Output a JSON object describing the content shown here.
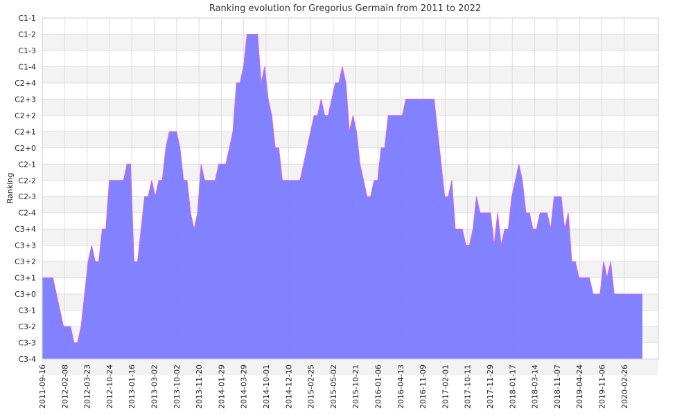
{
  "chart_data": {
    "type": "area",
    "title": "Ranking evolution for Gregorius Germain from 2011 to 2022",
    "ylabel": "Ranking",
    "xlabel": "",
    "grid": true,
    "y_categories": [
      "C1-1",
      "C1-2",
      "C1-3",
      "C1-4",
      "C2+4",
      "C2+3",
      "C2+2",
      "C2+1",
      "C2+0",
      "C2-1",
      "C2-2",
      "C2-3",
      "C2-4",
      "C3+4",
      "C3+3",
      "C3+2",
      "C3+1",
      "C3+0",
      "C3-1",
      "C3-2",
      "C3-3",
      "C3-4"
    ],
    "x_tick_labels": [
      "2011-09-16",
      "2012-02-08",
      "2012-03-23",
      "2012-10-24",
      "2013-01-16",
      "2013-03-02",
      "2013-10-02",
      "2013-11-20",
      "2014-01-29",
      "2014-03-29",
      "2014-10-01",
      "2014-12-10",
      "2015-02-25",
      "2015-05-02",
      "2015-10-21",
      "2016-01-06",
      "2016-04-13",
      "2016-11-09",
      "2017-02-01",
      "2017-10-11",
      "2017-11-29",
      "2018-01-17",
      "2018-03-14",
      "2018-11-07",
      "2019-04-24",
      "2019-11-06",
      "2020-02-26"
    ],
    "series": [
      {
        "color": "#7b7bff",
        "stroke": "#e060e0",
        "points": [
          [
            0,
            "C3+1"
          ],
          [
            3,
            "C3+1"
          ],
          [
            5,
            "C3-1"
          ],
          [
            6,
            "C3-2"
          ],
          [
            8,
            "C3-2"
          ],
          [
            9,
            "C3-3"
          ],
          [
            10,
            "C3-3"
          ],
          [
            11,
            "C3-2"
          ],
          [
            13,
            "C3+2"
          ],
          [
            14,
            "C3+3"
          ],
          [
            15,
            "C3+2"
          ],
          [
            16,
            "C3+2"
          ],
          [
            17,
            "C3+4"
          ],
          [
            18,
            "C3+4"
          ],
          [
            19,
            "C2-2"
          ],
          [
            23,
            "C2-2"
          ],
          [
            24,
            "C2-1"
          ],
          [
            25,
            "C2-1"
          ],
          [
            26,
            "C3+2"
          ],
          [
            27,
            "C3+2"
          ],
          [
            28,
            "C3+4"
          ],
          [
            29,
            "C2-3"
          ],
          [
            30,
            "C2-3"
          ],
          [
            31,
            "C2-2"
          ],
          [
            32,
            "C2-3"
          ],
          [
            33,
            "C2-2"
          ],
          [
            34,
            "C2-2"
          ],
          [
            35,
            "C2+0"
          ],
          [
            36,
            "C2+1"
          ],
          [
            38,
            "C2+1"
          ],
          [
            39,
            "C2+0"
          ],
          [
            40,
            "C2-2"
          ],
          [
            41,
            "C2-2"
          ],
          [
            42,
            "C2-4"
          ],
          [
            43,
            "C3+4"
          ],
          [
            44,
            "C2-4"
          ],
          [
            45,
            "C2-1"
          ],
          [
            46,
            "C2-2"
          ],
          [
            49,
            "C2-2"
          ],
          [
            50,
            "C2-1"
          ],
          [
            52,
            "C2-1"
          ],
          [
            53,
            "C2+0"
          ],
          [
            54,
            "C2+1"
          ],
          [
            55,
            "C2+4"
          ],
          [
            56,
            "C2+4"
          ],
          [
            57,
            "C1-4"
          ],
          [
            58,
            "C1-2"
          ],
          [
            61,
            "C1-2"
          ],
          [
            62,
            "C2+4"
          ],
          [
            63,
            "C1-4"
          ],
          [
            64,
            "C2+3"
          ],
          [
            65,
            "C2+2"
          ],
          [
            66,
            "C2+0"
          ],
          [
            67,
            "C2+0"
          ],
          [
            68,
            "C2-2"
          ],
          [
            73,
            "C2-2"
          ],
          [
            74,
            "C2-1"
          ],
          [
            75,
            "C2+0"
          ],
          [
            76,
            "C2+1"
          ],
          [
            77,
            "C2+2"
          ],
          [
            78,
            "C2+2"
          ],
          [
            79,
            "C2+3"
          ],
          [
            80,
            "C2+2"
          ],
          [
            81,
            "C2+2"
          ],
          [
            82,
            "C2+3"
          ],
          [
            83,
            "C2+4"
          ],
          [
            84,
            "C2+4"
          ],
          [
            85,
            "C1-4"
          ],
          [
            86,
            "C2+4"
          ],
          [
            87,
            "C2+1"
          ],
          [
            88,
            "C2+2"
          ],
          [
            89,
            "C2+1"
          ],
          [
            90,
            "C2-1"
          ],
          [
            91,
            "C2-2"
          ],
          [
            92,
            "C2-3"
          ],
          [
            93,
            "C2-3"
          ],
          [
            94,
            "C2-2"
          ],
          [
            95,
            "C2-2"
          ],
          [
            96,
            "C2+0"
          ],
          [
            97,
            "C2+0"
          ],
          [
            98,
            "C2+2"
          ],
          [
            102,
            "C2+2"
          ],
          [
            103,
            "C2+3"
          ],
          [
            111,
            "C2+3"
          ],
          [
            112,
            "C2+1"
          ],
          [
            113,
            "C2-1"
          ],
          [
            114,
            "C2-3"
          ],
          [
            115,
            "C2-3"
          ],
          [
            116,
            "C2-2"
          ],
          [
            117,
            "C3+4"
          ],
          [
            119,
            "C3+4"
          ],
          [
            120,
            "C3+3"
          ],
          [
            121,
            "C3+3"
          ],
          [
            122,
            "C3+4"
          ],
          [
            123,
            "C2-3"
          ],
          [
            124,
            "C2-4"
          ],
          [
            127,
            "C2-4"
          ],
          [
            128,
            "C3+3"
          ],
          [
            129,
            "C2-4"
          ],
          [
            130,
            "C3+3"
          ],
          [
            131,
            "C3+4"
          ],
          [
            132,
            "C3+4"
          ],
          [
            133,
            "C2-3"
          ],
          [
            134,
            "C2-2"
          ],
          [
            135,
            "C2-1"
          ],
          [
            136,
            "C2-2"
          ],
          [
            137,
            "C2-4"
          ],
          [
            138,
            "C2-4"
          ],
          [
            139,
            "C3+4"
          ],
          [
            140,
            "C3+4"
          ],
          [
            141,
            "C2-4"
          ],
          [
            143,
            "C2-4"
          ],
          [
            144,
            "C3+4"
          ],
          [
            145,
            "C2-3"
          ],
          [
            147,
            "C2-3"
          ],
          [
            148,
            "C3+4"
          ],
          [
            149,
            "C2-4"
          ],
          [
            150,
            "C3+2"
          ],
          [
            151,
            "C3+2"
          ],
          [
            152,
            "C3+1"
          ],
          [
            155,
            "C3+1"
          ],
          [
            156,
            "C3+0"
          ],
          [
            158,
            "C3+0"
          ],
          [
            159,
            "C3+2"
          ],
          [
            160,
            "C3+1"
          ],
          [
            161,
            "C3+2"
          ],
          [
            162,
            "C3+0"
          ],
          [
            170,
            "C3+0"
          ]
        ]
      }
    ]
  }
}
